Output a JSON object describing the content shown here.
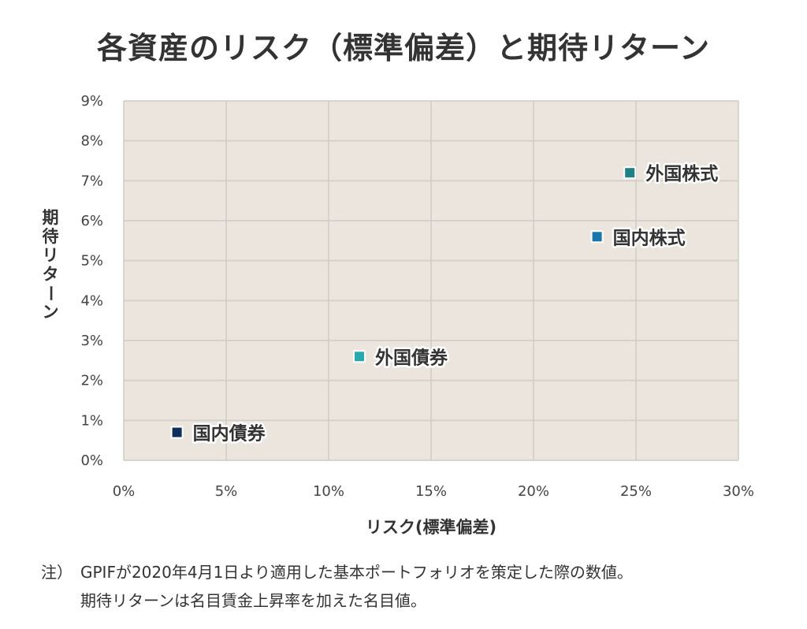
{
  "title": "各資産のリスク（標準偏差）と期待リターン",
  "chart_data": {
    "type": "scatter",
    "title": "各資産のリスク（標準偏差）と期待リターン",
    "xlabel": "リスク(標準偏差)",
    "ylabel": "期待リターン",
    "xlim": [
      0,
      30
    ],
    "ylim": [
      0,
      9
    ],
    "x_ticks": [
      0,
      5,
      10,
      15,
      20,
      25,
      30
    ],
    "y_ticks": [
      0,
      1,
      2,
      3,
      4,
      5,
      6,
      7,
      8,
      9
    ],
    "tick_suffix": "%",
    "grid": true,
    "colors": {
      "plot_bg": "#ebe5dd",
      "grid": "#cfcbc5"
    },
    "points": [
      {
        "label": "国内債券",
        "x": 2.6,
        "y": 0.7,
        "color": "#0e2f5c"
      },
      {
        "label": "外国債券",
        "x": 11.5,
        "y": 2.6,
        "color": "#2ba8ad"
      },
      {
        "label": "国内株式",
        "x": 23.1,
        "y": 5.6,
        "color": "#1a75a8"
      },
      {
        "label": "外国株式",
        "x": 24.7,
        "y": 7.2,
        "color": "#1f8085"
      }
    ]
  },
  "note": {
    "marker": "注）",
    "line1": "GPIFが2020年4月1日より適用した基本ポートフォリオを策定した際の数値。",
    "line2": "期待リターンは名目賃金上昇率を加えた名目値。"
  }
}
